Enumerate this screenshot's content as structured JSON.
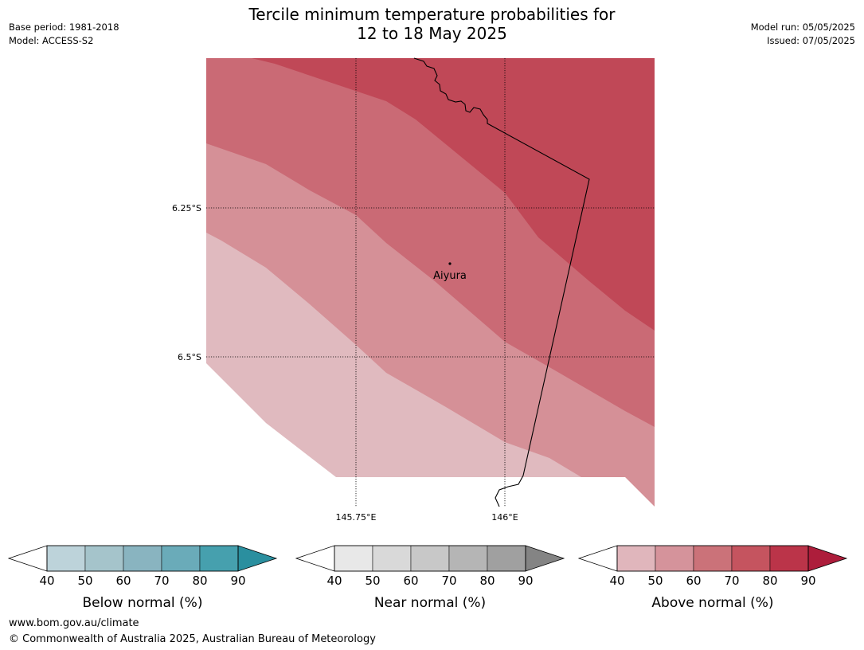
{
  "title_line1": "Tercile minimum temperature probabilities for",
  "title_line2": "12 to 18 May 2025",
  "meta": {
    "base_period": "Base period: 1981-2018",
    "model": "Model: ACCESS-S2",
    "model_run": "Model run: 05/05/2025",
    "issued": "Issued: 07/05/2025"
  },
  "map": {
    "lat_labels": [
      "6.25°S",
      "6.5°S"
    ],
    "lon_labels": [
      "145.75°E",
      "146°E"
    ],
    "place": "Aiyura",
    "band_colors": {
      "above_40": "#e0babf",
      "above_50": "#d59097",
      "above_60": "#ca6a75",
      "above_70": "#c04857"
    }
  },
  "legends": [
    {
      "label": "Below normal (%)",
      "ticks": [
        "40",
        "50",
        "60",
        "70",
        "80",
        "90"
      ],
      "colors": [
        "#bdd3da",
        "#a5c4cb",
        "#89b4c0",
        "#6aabb9",
        "#46a0ae"
      ],
      "extend_color": "#2a8f9f"
    },
    {
      "label": "Near normal (%)",
      "ticks": [
        "40",
        "50",
        "60",
        "70",
        "80",
        "90"
      ],
      "colors": [
        "#e8e8e8",
        "#d9d9d9",
        "#c8c8c8",
        "#b5b5b5",
        "#a0a0a0"
      ],
      "extend_color": "#848484"
    },
    {
      "label": "Above normal (%)",
      "ticks": [
        "40",
        "50",
        "60",
        "70",
        "80",
        "90"
      ],
      "colors": [
        "#e0b6bc",
        "#d5939b",
        "#cb7279",
        "#c5545f",
        "#bb3449"
      ],
      "extend_color": "#ad1d3b"
    }
  ],
  "footer": {
    "url": "www.bom.gov.au/climate",
    "copyright": "© Commonwealth of Australia 2025, Australian Bureau of Meteorology"
  }
}
